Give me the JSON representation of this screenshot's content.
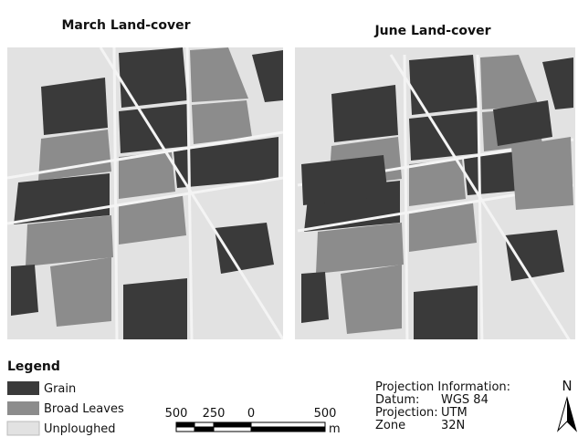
{
  "maps": [
    {
      "title": "March Land-cover"
    },
    {
      "title": "June Land-cover"
    }
  ],
  "legend": {
    "title": "Legend",
    "items": [
      "Grain",
      "Broad Leaves",
      "Unploughed"
    ]
  },
  "scale_bar": {
    "labels": [
      "500",
      "250",
      "0",
      "500"
    ],
    "unit": "m"
  },
  "projection": {
    "title": "Projection Information:",
    "rows": [
      [
        "Datum:",
        "WGS 84"
      ],
      [
        "Projection:",
        "UTM"
      ],
      [
        "Zone",
        "32N"
      ]
    ]
  },
  "north": "N"
}
